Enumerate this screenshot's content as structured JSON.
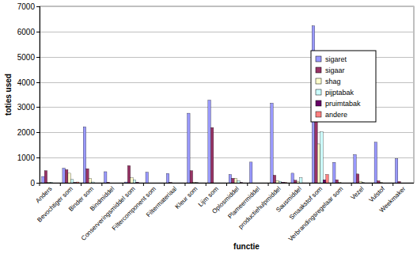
{
  "chart_data": {
    "type": "bar",
    "x_label": "functie",
    "y_label": "toties used",
    "categories": [
      "Anders",
      "Bevochtiger som",
      "Binder som",
      "Bindmiddel",
      "Conserveringsmiddel som",
      "Filtercomponent som",
      "Filtermateriaal",
      "Kleur som",
      "Lijm som",
      "Oplosmiddel",
      "Plameermiddel",
      "productiehulpmiddel",
      "Sausmiddel",
      "Smaakstof som",
      "Verbrandingsregelaar som",
      "Vezel",
      "Vulstof",
      "Weekmaker"
    ],
    "series": [
      {
        "name": "sigaret",
        "color": "#9999ff",
        "values": [
          250,
          580,
          2220,
          440,
          30,
          420,
          370,
          2760,
          3280,
          330,
          820,
          3160,
          380,
          6230,
          810,
          1120,
          1610,
          960
        ]
      },
      {
        "name": "sigaar",
        "color": "#993366",
        "values": [
          480,
          520,
          560,
          20,
          680,
          0,
          10,
          480,
          2190,
          180,
          0,
          300,
          100,
          2750,
          120,
          350,
          80,
          50
        ]
      },
      {
        "name": "shag",
        "color": "#ffffcc",
        "values": [
          20,
          380,
          170,
          0,
          200,
          0,
          0,
          20,
          0,
          180,
          0,
          90,
          60,
          1540,
          20,
          60,
          10,
          0
        ]
      },
      {
        "name": "pijptabak",
        "color": "#ccffff",
        "values": [
          20,
          130,
          30,
          0,
          120,
          0,
          0,
          10,
          0,
          80,
          0,
          60,
          200,
          2020,
          0,
          10,
          0,
          0
        ]
      },
      {
        "name": "pruimtabak",
        "color": "#660066",
        "values": [
          0,
          10,
          0,
          0,
          20,
          0,
          0,
          0,
          0,
          10,
          0,
          20,
          0,
          120,
          0,
          0,
          0,
          0
        ]
      },
      {
        "name": "andere",
        "color": "#ff8080",
        "values": [
          0,
          30,
          0,
          0,
          0,
          0,
          0,
          0,
          0,
          0,
          0,
          10,
          0,
          330,
          0,
          0,
          0,
          0
        ]
      }
    ],
    "ylim": [
      0,
      7000
    ],
    "yticks": [
      0,
      1000,
      2000,
      3000,
      4000,
      5000,
      6000,
      7000
    ],
    "grid": true,
    "legend": "right"
  }
}
